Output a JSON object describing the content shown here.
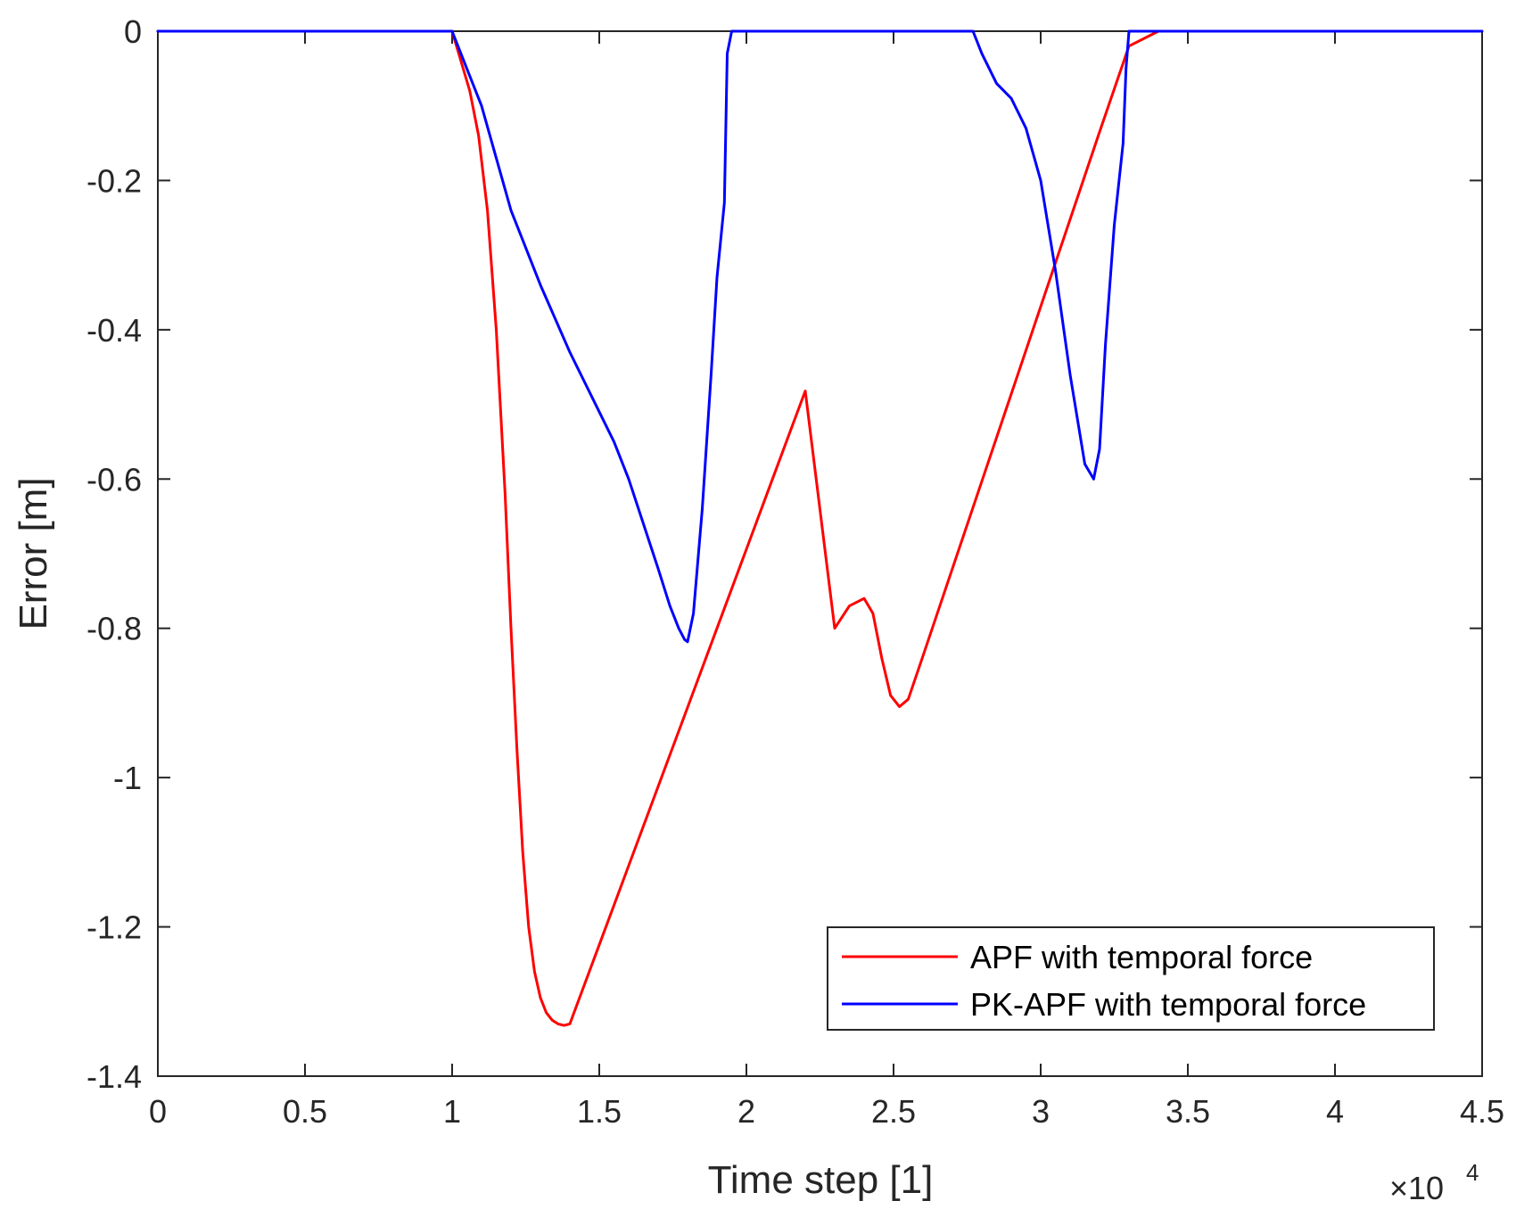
{
  "chart_data": {
    "type": "line",
    "xlabel": "Time step [1]",
    "ylabel": "Error [m]",
    "x_exponent_label": "×10",
    "x_exponent_power": "4",
    "xlim": [
      0,
      4.5
    ],
    "ylim": [
      -1.4,
      0
    ],
    "x_ticks": [
      0,
      0.5,
      1,
      1.5,
      2,
      2.5,
      3,
      3.5,
      4,
      4.5
    ],
    "x_tick_labels": [
      "0",
      "0.5",
      "1",
      "1.5",
      "2",
      "2.5",
      "3",
      "3.5",
      "4",
      "4.5"
    ],
    "y_ticks": [
      0,
      -0.2,
      -0.4,
      -0.6,
      -0.8,
      -1,
      -1.2,
      -1.4
    ],
    "y_tick_labels": [
      "0",
      "-0.2",
      "-0.4",
      "-0.6",
      "-0.8",
      "-1",
      "-1.2",
      "-1.4"
    ],
    "grid": false,
    "legend_position": "bottom-right",
    "series": [
      {
        "name": "APF with temporal force",
        "color": "#ff0000",
        "x": [
          0,
          1.0,
          1.03,
          1.06,
          1.09,
          1.12,
          1.15,
          1.18,
          1.2,
          1.22,
          1.24,
          1.26,
          1.28,
          1.3,
          1.32,
          1.34,
          1.36,
          1.38,
          1.4,
          1.45,
          1.5,
          1.6,
          1.7,
          1.8,
          1.9,
          2.0,
          2.1,
          2.2,
          2.3,
          2.35,
          2.4,
          2.43,
          2.46,
          2.49,
          2.52,
          2.55,
          2.6,
          2.7,
          2.8,
          2.9,
          3.0,
          3.1,
          3.2,
          3.3,
          3.4,
          3.45,
          3.5,
          3.55,
          3.6,
          3.65,
          3.7,
          3.75,
          3.8,
          3.84
        ],
        "y": [
          0,
          0,
          -0.04,
          -0.08,
          -0.14,
          -0.24,
          -0.4,
          -0.62,
          -0.8,
          -0.96,
          -1.1,
          -1.2,
          -1.26,
          -1.295,
          -1.315,
          -1.325,
          -1.33,
          -1.332,
          -1.33,
          -1.277,
          -1.224,
          -1.118,
          -1.012,
          -0.906,
          -0.8,
          -0.694,
          -0.588,
          -0.482,
          -0.8,
          -0.77,
          -0.76,
          -0.78,
          -0.84,
          -0.89,
          -0.905,
          -0.895,
          -0.837,
          -0.72,
          -0.603,
          -0.486,
          -0.369,
          -0.252,
          -0.135,
          -0.02,
          0,
          0,
          0,
          0,
          0,
          0,
          0,
          0,
          0,
          0
        ]
      },
      {
        "name": "PK-APF with temporal force",
        "color": "#0000ff",
        "x": [
          0,
          1.0,
          1.05,
          1.1,
          1.15,
          1.2,
          1.3,
          1.4,
          1.5,
          1.55,
          1.6,
          1.65,
          1.7,
          1.74,
          1.77,
          1.79,
          1.8,
          1.82,
          1.85,
          1.88,
          1.9,
          1.925,
          1.935,
          1.95,
          2.0,
          2.5,
          2.77,
          2.8,
          2.85,
          2.9,
          2.95,
          3.0,
          3.05,
          3.1,
          3.15,
          3.18,
          3.2,
          3.22,
          3.25,
          3.28,
          3.29,
          3.3,
          3.4,
          4.5
        ],
        "y": [
          0,
          0,
          -0.05,
          -0.1,
          -0.17,
          -0.24,
          -0.34,
          -0.43,
          -0.51,
          -0.55,
          -0.6,
          -0.66,
          -0.72,
          -0.77,
          -0.8,
          -0.815,
          -0.818,
          -0.78,
          -0.64,
          -0.46,
          -0.33,
          -0.23,
          -0.03,
          0,
          0,
          0,
          0,
          -0.03,
          -0.07,
          -0.09,
          -0.13,
          -0.2,
          -0.32,
          -0.46,
          -0.58,
          -0.6,
          -0.56,
          -0.42,
          -0.26,
          -0.15,
          -0.05,
          0,
          0,
          0
        ]
      }
    ]
  }
}
